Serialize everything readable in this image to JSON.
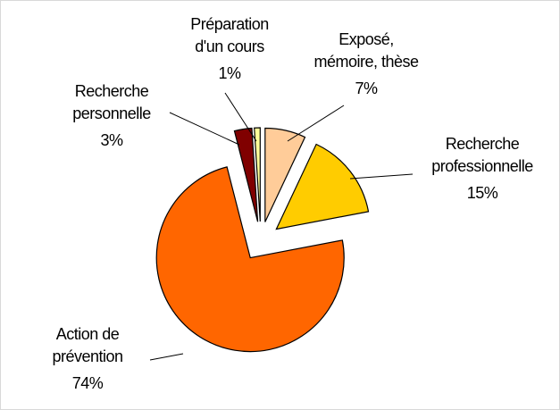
{
  "chart_data": {
    "type": "pie",
    "categories": [
      "Exposé, mémoire, thèse",
      "Recherche professionnelle",
      "Action de prévention",
      "Recherche personnelle",
      "Préparation d'un cours"
    ],
    "values": [
      7,
      15,
      74,
      3,
      1
    ],
    "value_labels": [
      "7%",
      "15%",
      "74%",
      "3%",
      "1%"
    ],
    "colors": [
      "#ffcc99",
      "#ffcc00",
      "#ff6600",
      "#800000",
      "#ffff99"
    ]
  }
}
